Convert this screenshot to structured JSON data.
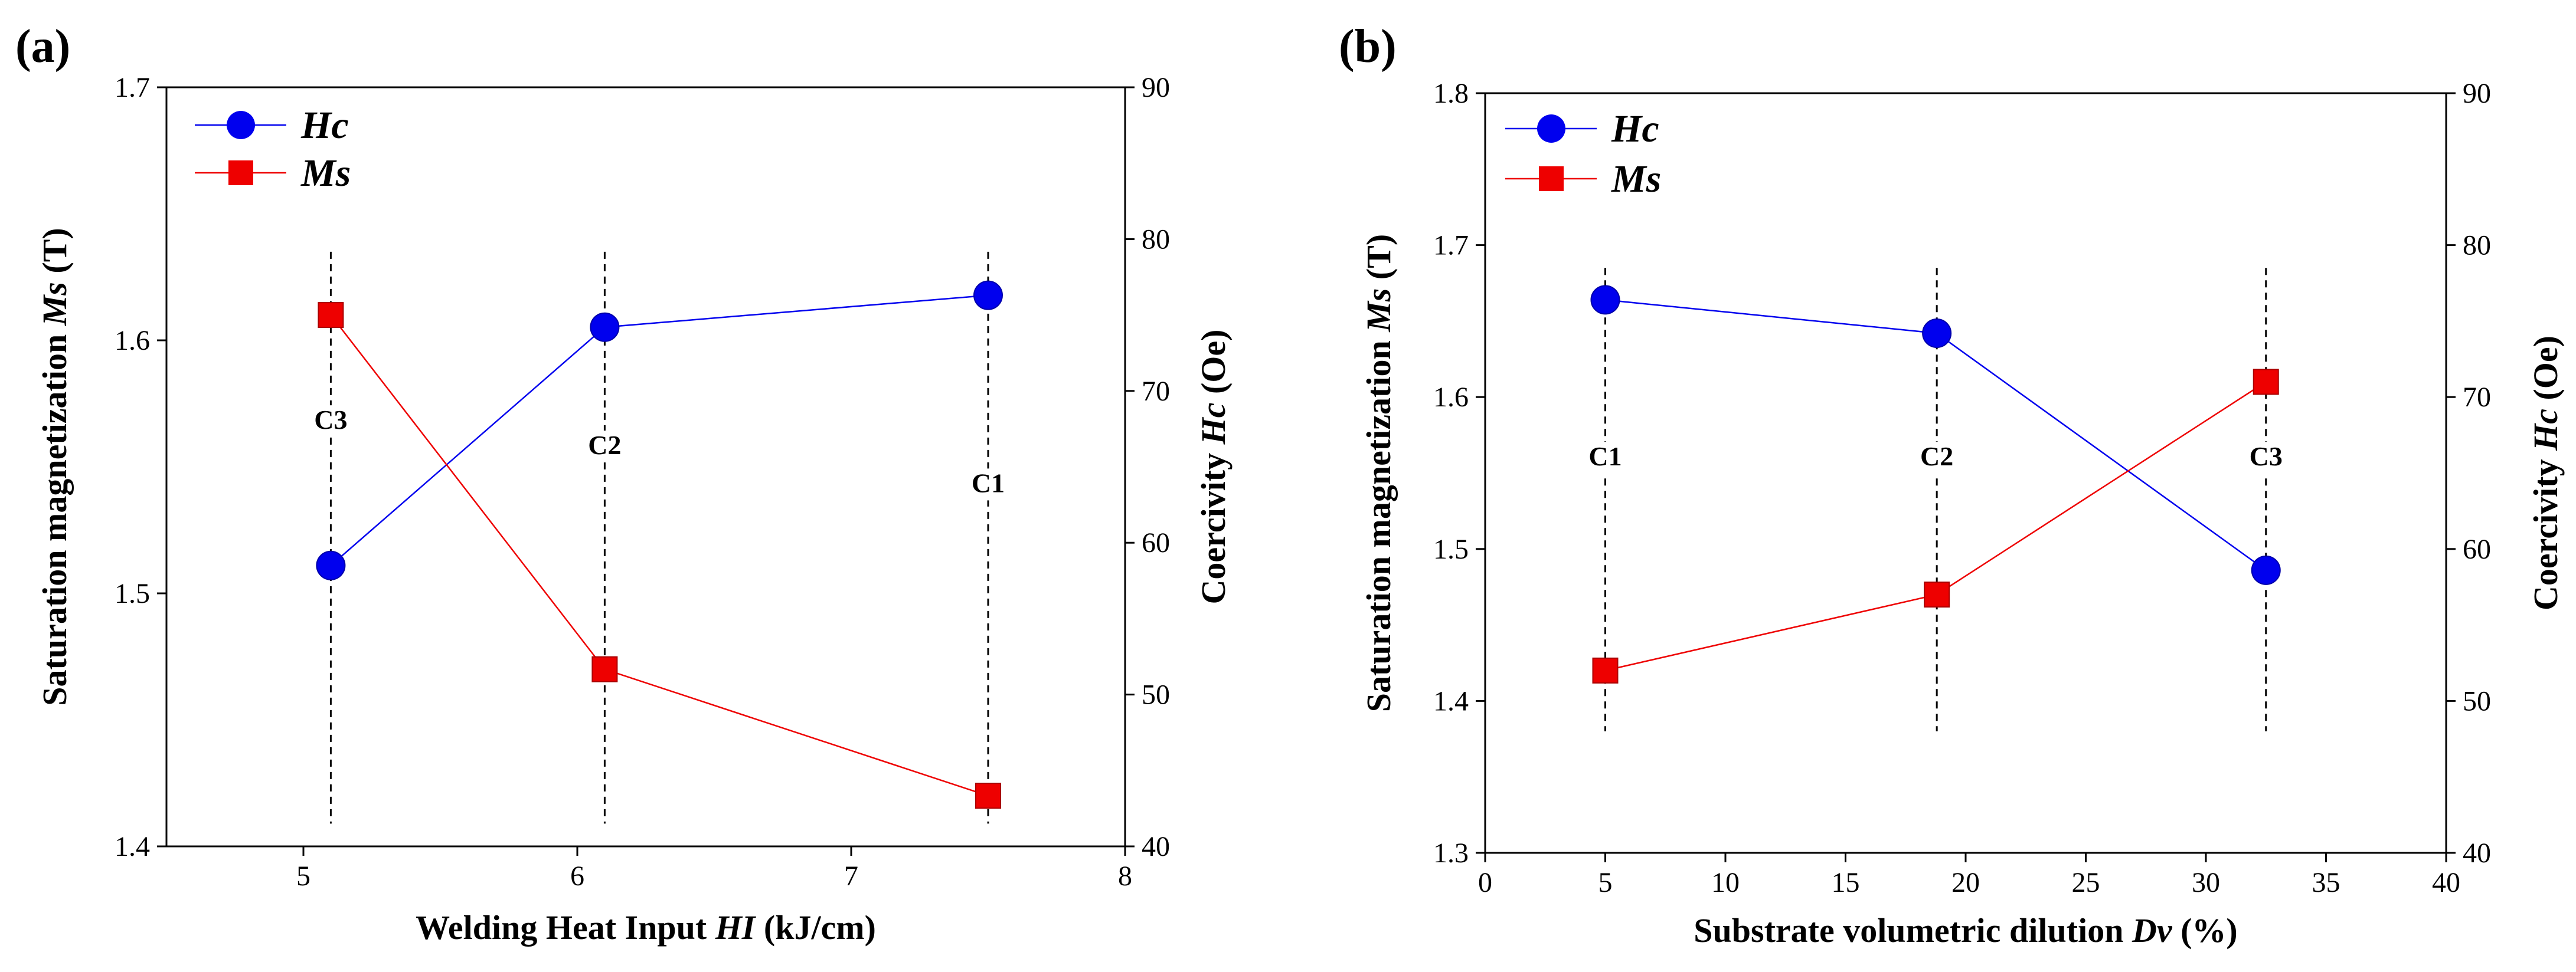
{
  "chart_data": [
    {
      "panel": "(a)",
      "type": "line",
      "xlabel_parts": [
        "Welding Heat Input ",
        "HI",
        " (kJ/cm)"
      ],
      "ylabel_left_parts": [
        "Saturation magnetization ",
        "Ms",
        " (T)"
      ],
      "ylabel_right_parts": [
        "Coercivity ",
        "Hc",
        " (Oe)"
      ],
      "xlim": [
        4.5,
        8
      ],
      "xticks": [
        5,
        6,
        7,
        8
      ],
      "ylim_left": [
        1.4,
        1.7
      ],
      "yticks_left": [
        "1.4",
        "1.5",
        "1.6",
        "1.7"
      ],
      "ylim_right": [
        40,
        90
      ],
      "yticks_right": [
        "40",
        "50",
        "60",
        "70",
        "80",
        "90"
      ],
      "legend": [
        "Hc",
        "Ms"
      ],
      "legend_position": "top-left",
      "markers": [
        {
          "x": 5.1,
          "label": "C3",
          "label_y": 1.565
        },
        {
          "x": 6.1,
          "label": "C2",
          "label_y": 1.555
        },
        {
          "x": 7.5,
          "label": "C1",
          "label_y": 1.54
        }
      ],
      "series": [
        {
          "name": "Hc",
          "axis": "right",
          "color": "#0000ee",
          "marker": "circle",
          "x": [
            5.1,
            6.1,
            7.5
          ],
          "values": [
            58.5,
            74.2,
            76.3
          ]
        },
        {
          "name": "Ms",
          "axis": "left",
          "color": "#ee0000",
          "marker": "square",
          "x": [
            5.1,
            6.1,
            7.5
          ],
          "values": [
            1.61,
            1.47,
            1.42
          ]
        }
      ]
    },
    {
      "panel": "(b)",
      "type": "line",
      "xlabel_parts": [
        "Substrate volumetric dilution ",
        "Dv",
        " (%)"
      ],
      "ylabel_left_parts": [
        "Saturation magnetization ",
        "Ms",
        " (T)"
      ],
      "ylabel_right_parts": [
        "Coercivity ",
        "Hc",
        " (Oe)"
      ],
      "xlim": [
        0,
        40
      ],
      "xticks": [
        0,
        5,
        10,
        15,
        20,
        25,
        30,
        35,
        40
      ],
      "ylim_left": [
        1.3,
        1.8
      ],
      "yticks_left": [
        "1.3",
        "1.4",
        "1.5",
        "1.6",
        "1.7",
        "1.8"
      ],
      "ylim_right": [
        40,
        90
      ],
      "yticks_right": [
        "40",
        "50",
        "60",
        "70",
        "80",
        "90"
      ],
      "legend": [
        "Hc",
        "Ms"
      ],
      "legend_position": "top-left",
      "markers": [
        {
          "x": 5,
          "label": "C1",
          "label_y": 1.555
        },
        {
          "x": 18.8,
          "label": "C2",
          "label_y": 1.555
        },
        {
          "x": 32.5,
          "label": "C3",
          "label_y": 1.555
        }
      ],
      "series": [
        {
          "name": "Hc",
          "axis": "right",
          "color": "#0000ee",
          "marker": "circle",
          "x": [
            5,
            18.8,
            32.5
          ],
          "values": [
            76.4,
            74.2,
            58.6
          ]
        },
        {
          "name": "Ms",
          "axis": "left",
          "color": "#ee0000",
          "marker": "square",
          "x": [
            5,
            18.8,
            32.5
          ],
          "values": [
            1.42,
            1.47,
            1.61
          ]
        }
      ]
    }
  ]
}
